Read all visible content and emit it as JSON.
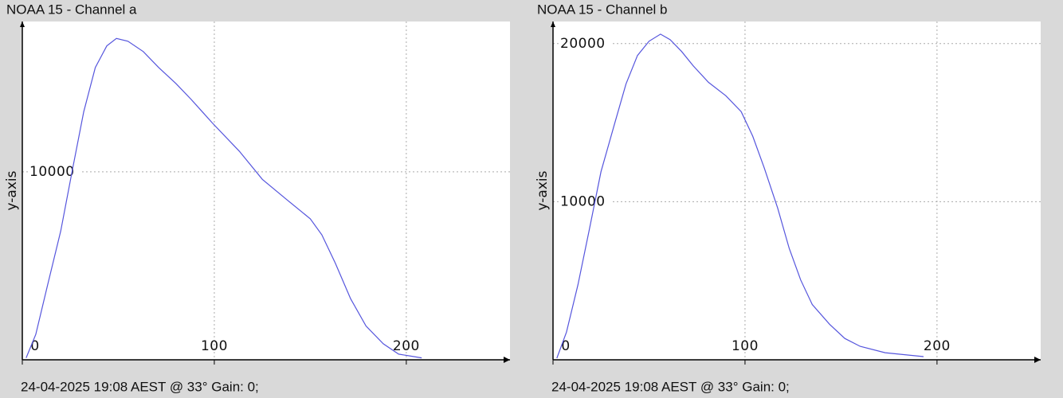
{
  "chart_data": [
    {
      "type": "line",
      "title": "NOAA 15 - Channel a",
      "y_label": "y-axis",
      "caption": "24-04-2025 19:08 AEST @ 33° Gain: 0;",
      "x": [
        2,
        7,
        13,
        20,
        26,
        32,
        38,
        44,
        49,
        55,
        63,
        71,
        80,
        88,
        99,
        113,
        125,
        138,
        150,
        156,
        163,
        171,
        179,
        188,
        196,
        208
      ],
      "values": [
        100,
        1350,
        3900,
        6850,
        10050,
        13200,
        15550,
        16700,
        17100,
        16950,
        16400,
        15550,
        14700,
        13850,
        12600,
        11100,
        9600,
        8500,
        7500,
        6650,
        5150,
        3250,
        1800,
        850,
        300,
        100
      ],
      "color": "#5555dd",
      "xlim": [
        0,
        254
      ],
      "ylim": [
        0,
        18000
      ],
      "xticks": [
        0,
        100,
        200
      ],
      "yticks": [
        10000
      ],
      "grid": true
    },
    {
      "type": "line",
      "title": "NOAA 15 - Channel b",
      "y_label": "y-axis",
      "caption": "24-04-2025 19:08 AEST @ 33° Gain: 0;",
      "x": [
        2,
        7,
        13,
        19,
        25,
        32,
        38,
        44,
        50,
        56,
        61,
        67,
        73,
        81,
        90,
        98,
        104,
        110,
        117,
        123,
        129,
        135,
        144,
        152,
        160,
        173,
        193
      ],
      "values": [
        100,
        1750,
        4750,
        8300,
        11900,
        14900,
        17450,
        19250,
        20150,
        20600,
        20250,
        19500,
        18600,
        17550,
        16700,
        15700,
        14150,
        12150,
        9600,
        7050,
        5050,
        3500,
        2250,
        1350,
        850,
        450,
        200
      ],
      "color": "#5555dd",
      "xlim": [
        0,
        254
      ],
      "ylim": [
        0,
        21400
      ],
      "xticks": [
        0,
        100,
        200
      ],
      "yticks": [
        10000,
        20000
      ],
      "grid": true
    }
  ]
}
